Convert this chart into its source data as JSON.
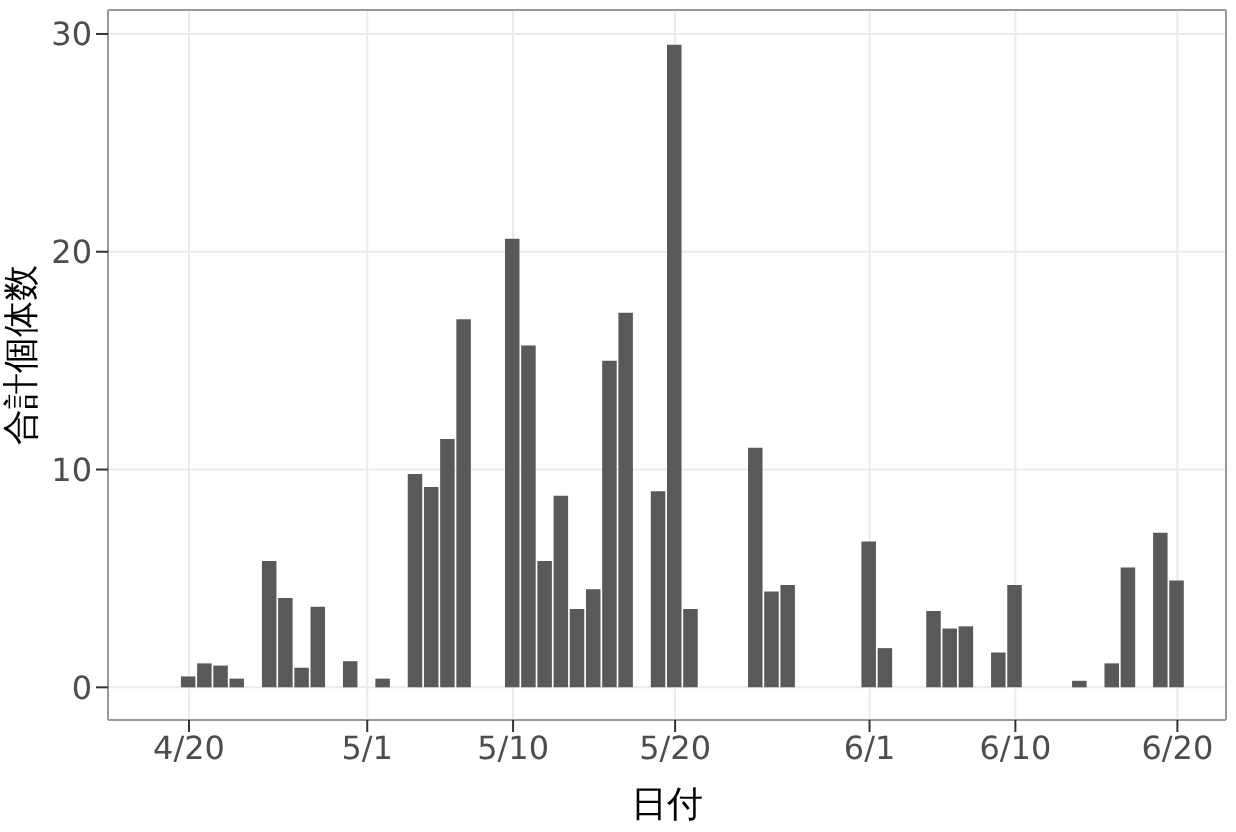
{
  "chart_data": {
    "type": "bar",
    "xlabel": "日付",
    "ylabel": "合計個体数",
    "x": [
      "--04-20",
      "--04-21",
      "--04-22",
      "--04-23",
      "--04-25",
      "--04-26",
      "--04-27",
      "--04-28",
      "--04-30",
      "--05-02",
      "--05-04",
      "--05-05",
      "--05-06",
      "--05-07",
      "--05-10",
      "--05-11",
      "--05-12",
      "--05-13",
      "--05-14",
      "--05-15",
      "--05-16",
      "--05-17",
      "--05-19",
      "--05-20",
      "--05-21",
      "--05-25",
      "--05-26",
      "--05-27",
      "--06-01",
      "--06-02",
      "--06-05",
      "--06-06",
      "--06-07",
      "--06-09",
      "--06-10",
      "--06-14",
      "--06-16",
      "--06-17",
      "--06-19",
      "--06-20"
    ],
    "values": [
      0.5,
      1.1,
      1.0,
      0.4,
      5.8,
      4.1,
      0.9,
      3.7,
      1.2,
      0.4,
      9.8,
      9.2,
      11.4,
      16.9,
      20.6,
      15.7,
      5.8,
      8.8,
      3.6,
      4.5,
      15.0,
      17.2,
      9.0,
      29.5,
      3.6,
      11.0,
      4.4,
      4.7,
      6.7,
      1.8,
      3.5,
      2.7,
      2.8,
      1.6,
      4.7,
      0.3,
      1.1,
      5.5,
      7.1,
      4.9
    ],
    "color": "#595959",
    "xlim": [
      "--04-15",
      "--06-23"
    ],
    "xticks": [
      {
        "value": "--04-20",
        "label": "4/20"
      },
      {
        "value": "--05-01",
        "label": "5/1"
      },
      {
        "value": "--05-10",
        "label": "5/10"
      },
      {
        "value": "--05-20",
        "label": "5/20"
      },
      {
        "value": "--06-01",
        "label": "6/1"
      },
      {
        "value": "--06-10",
        "label": "6/10"
      },
      {
        "value": "--06-20",
        "label": "6/20"
      }
    ],
    "ylim": [
      -1.5,
      31.1
    ],
    "yticks": [
      0,
      10,
      20,
      30
    ],
    "grid": true
  }
}
